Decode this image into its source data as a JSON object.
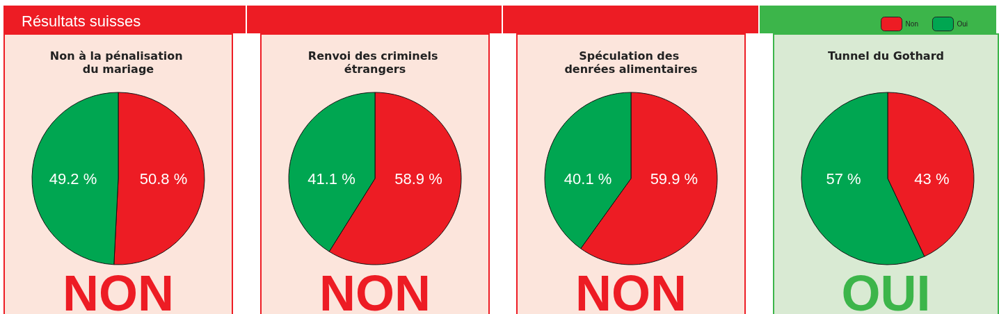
{
  "chart_data": [
    {
      "type": "pie",
      "title": "Non à la pénalisation du mariage",
      "categories": [
        null,
        null
      ],
      "values": [
        50.8,
        49.2
      ],
      "colors": [
        "#ed1c24",
        "#00a651"
      ],
      "value_labels": [
        "50.8 %",
        "49.2 %"
      ],
      "annotations": [
        "Résultats suisses",
        "NON"
      ]
    },
    {
      "type": "pie",
      "title": "Renvoi des criminels étrangers",
      "categories": [
        null,
        null
      ],
      "values": [
        58.9,
        41.1
      ],
      "colors": [
        "#ed1c24",
        "#00a651"
      ],
      "value_labels": [
        "58.9 %",
        "41.1 %"
      ],
      "annotations": [
        "NON"
      ]
    },
    {
      "type": "pie",
      "title": "Spéculation des denrées alimentaires",
      "categories": [
        null,
        null
      ],
      "values": [
        59.9,
        40.1
      ],
      "colors": [
        "#ed1c24",
        "#00a651"
      ],
      "value_labels": [
        "59.9 %",
        "40.1 %"
      ],
      "annotations": [
        "NON"
      ]
    },
    {
      "type": "pie",
      "title": "Tunnel du Gothard",
      "categories": [
        "Non",
        "Oui"
      ],
      "values": [
        43,
        57
      ],
      "colors": [
        "#ed1c24",
        "#00a651"
      ],
      "value_labels": [
        "43 %",
        "57 %"
      ],
      "annotations": [
        "OUI"
      ],
      "legend": "top right"
    }
  ]
}
